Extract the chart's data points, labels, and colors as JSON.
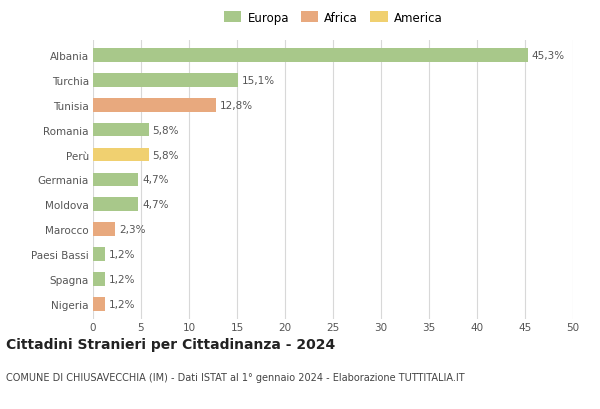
{
  "categories": [
    "Albania",
    "Turchia",
    "Tunisia",
    "Romania",
    "Perù",
    "Germania",
    "Moldova",
    "Marocco",
    "Paesi Bassi",
    "Spagna",
    "Nigeria"
  ],
  "values": [
    45.3,
    15.1,
    12.8,
    5.8,
    5.8,
    4.7,
    4.7,
    2.3,
    1.2,
    1.2,
    1.2
  ],
  "labels": [
    "45,3%",
    "15,1%",
    "12,8%",
    "5,8%",
    "5,8%",
    "4,7%",
    "4,7%",
    "2,3%",
    "1,2%",
    "1,2%",
    "1,2%"
  ],
  "colors": [
    "#a8c88a",
    "#a8c88a",
    "#e8a97e",
    "#a8c88a",
    "#f0d070",
    "#a8c88a",
    "#a8c88a",
    "#e8a97e",
    "#a8c88a",
    "#a8c88a",
    "#e8a97e"
  ],
  "legend": [
    {
      "label": "Europa",
      "color": "#a8c88a"
    },
    {
      "label": "Africa",
      "color": "#e8a97e"
    },
    {
      "label": "America",
      "color": "#f0d070"
    }
  ],
  "xlim": [
    0,
    50
  ],
  "xticks": [
    0,
    5,
    10,
    15,
    20,
    25,
    30,
    35,
    40,
    45,
    50
  ],
  "title": "Cittadini Stranieri per Cittadinanza - 2024",
  "subtitle": "COMUNE DI CHIUSAVECCHIA (IM) - Dati ISTAT al 1° gennaio 2024 - Elaborazione TUTTITALIA.IT",
  "bg_color": "#ffffff",
  "grid_color": "#d8d8d8",
  "bar_height": 0.55,
  "label_fontsize": 7.5,
  "ytick_fontsize": 7.5,
  "xtick_fontsize": 7.5,
  "title_fontsize": 10,
  "subtitle_fontsize": 7,
  "legend_fontsize": 8.5
}
